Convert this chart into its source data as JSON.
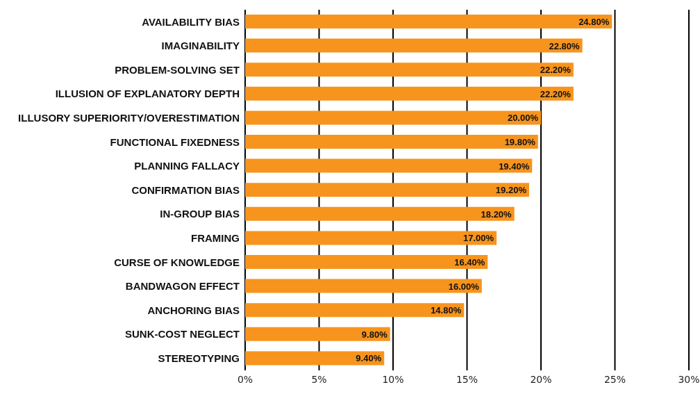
{
  "chart_data": {
    "type": "bar",
    "orientation": "horizontal",
    "categories": [
      "AVAILABILITY BIAS",
      "IMAGINABILITY",
      "PROBLEM-SOLVING SET",
      "ILLUSION OF EXPLANATORY DEPTH",
      "ILLUSORY SUPERIORITY/OVERESTIMATION",
      "FUNCTIONAL FIXEDNESS",
      "PLANNING FALLACY",
      "CONFIRMATION BIAS",
      "IN-GROUP BIAS",
      "FRAMING",
      "CURSE OF KNOWLEDGE",
      "BANDWAGON EFFECT",
      "ANCHORING BIAS",
      "SUNK-COST NEGLECT",
      "STEREOTYPING"
    ],
    "values": [
      24.8,
      22.8,
      22.2,
      22.2,
      20.0,
      19.8,
      19.4,
      19.2,
      18.2,
      17.0,
      16.4,
      16.0,
      14.8,
      9.8,
      9.4
    ],
    "value_labels": [
      "24.80%",
      "22.80%",
      "22.20%",
      "22.20%",
      "20.00%",
      "19.80%",
      "19.40%",
      "19.20%",
      "18.20%",
      "17.00%",
      "16.40%",
      "16.00%",
      "14.80%",
      "9.80%",
      "9.40%"
    ],
    "color": "#f7941d",
    "xlim": [
      0,
      30
    ],
    "xticks": [
      {
        "value": 0,
        "label": "0%"
      },
      {
        "value": 5,
        "label": "5%"
      },
      {
        "value": 10,
        "label": "10%"
      },
      {
        "value": 15,
        "label": "15%"
      },
      {
        "value": 20,
        "label": "20%"
      },
      {
        "value": 25,
        "label": "25%"
      },
      {
        "value": 30,
        "label": "30%"
      }
    ],
    "grid": "x",
    "legend": false
  }
}
